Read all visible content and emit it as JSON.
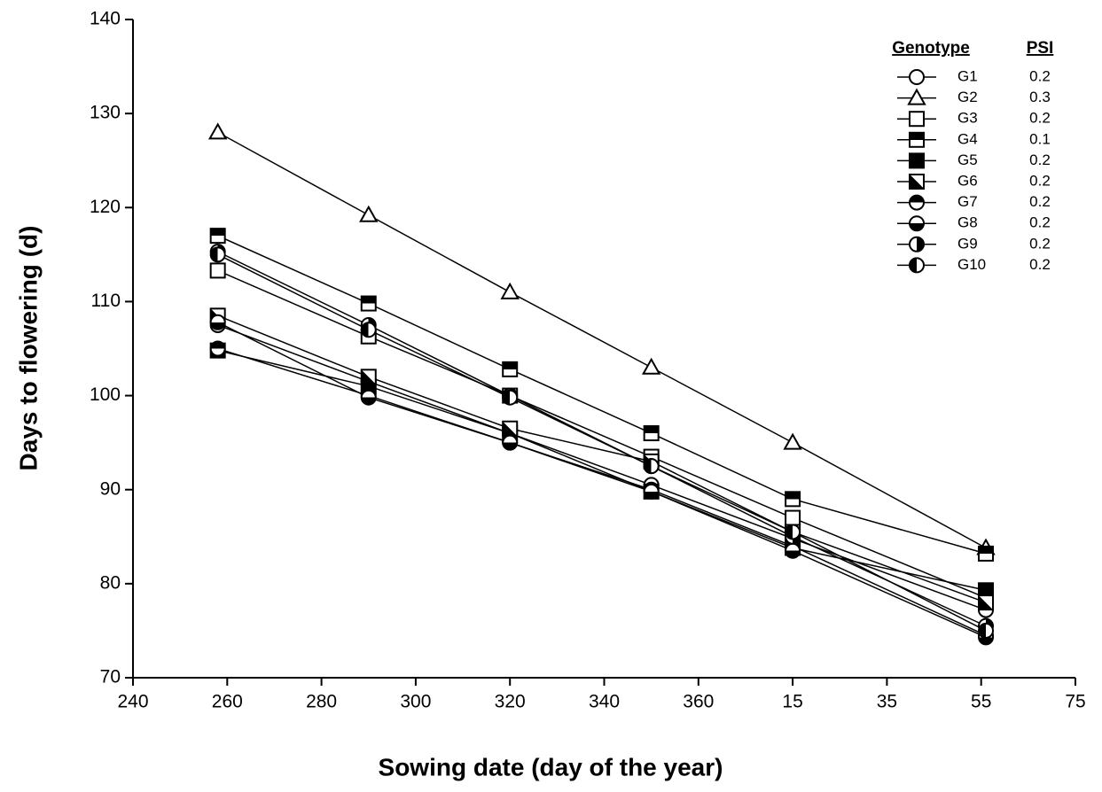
{
  "chart_data": {
    "type": "line",
    "xlabel": "Sowing date (day of the year)",
    "ylabel": "Days to flowering (d)",
    "xlim": [
      240,
      440
    ],
    "xticks": [
      240,
      260,
      280,
      300,
      320,
      340,
      360,
      {
        "value": 380,
        "label": "15"
      },
      {
        "value": 400,
        "label": "35"
      },
      {
        "value": 420,
        "label": "55"
      },
      {
        "value": 440,
        "label": "75"
      }
    ],
    "ylim": [
      70,
      140
    ],
    "yticks": [
      70,
      80,
      90,
      100,
      110,
      120,
      130,
      140
    ],
    "legend_title": "Genotype",
    "legend_value_title": "PSI",
    "legend": "upper right",
    "x": [
      258,
      290,
      320,
      350,
      380,
      421
    ],
    "series": [
      {
        "name": "G1",
        "psi": 0.2,
        "shape": "circle",
        "fill": "open",
        "values": [
          107.5,
          101.5,
          96,
          90.5,
          84.8,
          77.2
        ]
      },
      {
        "name": "G2",
        "psi": 0.3,
        "shape": "triangle",
        "fill": "open",
        "values": [
          128,
          119.2,
          111,
          103,
          95,
          83.8
        ]
      },
      {
        "name": "G3",
        "psi": 0.2,
        "shape": "square",
        "fill": "open",
        "values": [
          113.3,
          106.3,
          100,
          93.5,
          87,
          78.5
        ]
      },
      {
        "name": "G4",
        "psi": 0.1,
        "shape": "square",
        "fill": "top",
        "values": [
          117,
          109.8,
          102.8,
          96,
          89,
          83.2
        ]
      },
      {
        "name": "G5",
        "psi": 0.2,
        "shape": "square",
        "fill": "filled",
        "values": [
          104.8,
          101,
          96,
          89.8,
          83.8,
          79.3
        ]
      },
      {
        "name": "G6",
        "psi": 0.2,
        "shape": "square",
        "fill": "diag",
        "values": [
          108.5,
          102,
          96.5,
          93,
          85.5,
          78
        ]
      },
      {
        "name": "G7",
        "psi": 0.2,
        "shape": "circle",
        "fill": "top",
        "values": [
          105,
          100,
          95,
          90,
          84,
          74.5
        ]
      },
      {
        "name": "G8",
        "psi": 0.2,
        "shape": "circle",
        "fill": "bottom",
        "values": [
          107.8,
          99.8,
          95,
          89.8,
          83.5,
          74.3
        ]
      },
      {
        "name": "G9",
        "psi": 0.2,
        "shape": "circle",
        "fill": "right",
        "values": [
          115.3,
          107.5,
          100,
          92.5,
          85,
          75.5
        ]
      },
      {
        "name": "G10",
        "psi": 0.2,
        "shape": "circle",
        "fill": "left",
        "values": [
          115,
          107,
          99.8,
          92.5,
          85.5,
          75
        ]
      }
    ],
    "color": "#000000"
  }
}
